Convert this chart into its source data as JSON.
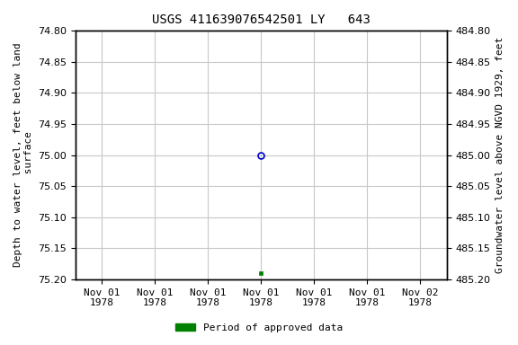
{
  "title": "USGS 411639076542501 LY   643",
  "ylabel_left": "Depth to water level, feet below land\n surface",
  "ylabel_right": "Groundwater level above NGVD 1929, feet",
  "ylim_left": [
    74.8,
    75.2
  ],
  "ylim_right": [
    485.2,
    484.8
  ],
  "yticks_left": [
    74.8,
    74.85,
    74.9,
    74.95,
    75.0,
    75.05,
    75.1,
    75.15,
    75.2
  ],
  "yticks_right": [
    485.2,
    485.15,
    485.1,
    485.05,
    485.0,
    484.95,
    484.9,
    484.85,
    484.8
  ],
  "point_open_value": 75.0,
  "point_filled_value": 75.19,
  "open_color": "#0000cc",
  "filled_color": "#008000",
  "legend_label": "Period of approved data",
  "legend_color": "#008000",
  "background_color": "#ffffff",
  "grid_color": "#c8c8c8",
  "font_family": "monospace",
  "title_fontsize": 10,
  "axis_label_fontsize": 8,
  "tick_fontsize": 8,
  "x_tick_labels": [
    "Nov 01\n1978",
    "Nov 01\n1978",
    "Nov 01\n1978",
    "Nov 01\n1978",
    "Nov 01\n1978",
    "Nov 01\n1978",
    "Nov 02\n1978"
  ]
}
